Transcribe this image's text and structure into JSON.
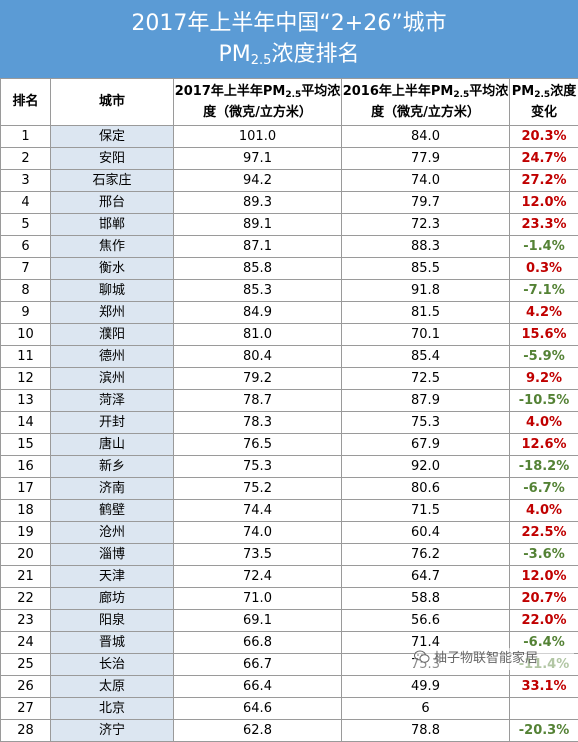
{
  "title": {
    "line1": "2017年上半年中国“2+26”城市",
    "line2_prefix": "PM",
    "line2_sub": "2.5",
    "line2_suffix": "浓度排名"
  },
  "headers": {
    "rank": "排名",
    "city": "城市",
    "y2017_prefix": "2017年上半年PM",
    "y2017_sub": "2.5",
    "y2017_suffix": "平均浓度（微克/立方米）",
    "y2016_prefix": "2016年上半年PM",
    "y2016_sub": "2.5",
    "y2016_suffix": "平均浓度（微克/立方米）",
    "change_prefix": "PM",
    "change_sub": "2.5",
    "change_suffix": "浓度变化"
  },
  "rows": [
    {
      "rank": "1",
      "city": "保定",
      "y2017": "101.0",
      "y2016": "84.0",
      "change": "20.3%",
      "trend": "up"
    },
    {
      "rank": "2",
      "city": "安阳",
      "y2017": "97.1",
      "y2016": "77.9",
      "change": "24.7%",
      "trend": "up"
    },
    {
      "rank": "3",
      "city": "石家庄",
      "y2017": "94.2",
      "y2016": "74.0",
      "change": "27.2%",
      "trend": "up"
    },
    {
      "rank": "4",
      "city": "邢台",
      "y2017": "89.3",
      "y2016": "79.7",
      "change": "12.0%",
      "trend": "up"
    },
    {
      "rank": "5",
      "city": "邯郸",
      "y2017": "89.1",
      "y2016": "72.3",
      "change": "23.3%",
      "trend": "up"
    },
    {
      "rank": "6",
      "city": "焦作",
      "y2017": "87.1",
      "y2016": "88.3",
      "change": "-1.4%",
      "trend": "down"
    },
    {
      "rank": "7",
      "city": "衡水",
      "y2017": "85.8",
      "y2016": "85.5",
      "change": "0.3%",
      "trend": "up"
    },
    {
      "rank": "8",
      "city": "聊城",
      "y2017": "85.3",
      "y2016": "91.8",
      "change": "-7.1%",
      "trend": "down"
    },
    {
      "rank": "9",
      "city": "郑州",
      "y2017": "84.9",
      "y2016": "81.5",
      "change": "4.2%",
      "trend": "up"
    },
    {
      "rank": "10",
      "city": "濮阳",
      "y2017": "81.0",
      "y2016": "70.1",
      "change": "15.6%",
      "trend": "up"
    },
    {
      "rank": "11",
      "city": "德州",
      "y2017": "80.4",
      "y2016": "85.4",
      "change": "-5.9%",
      "trend": "down"
    },
    {
      "rank": "12",
      "city": "滨州",
      "y2017": "79.2",
      "y2016": "72.5",
      "change": "9.2%",
      "trend": "up"
    },
    {
      "rank": "13",
      "city": "菏泽",
      "y2017": "78.7",
      "y2016": "87.9",
      "change": "-10.5%",
      "trend": "down"
    },
    {
      "rank": "14",
      "city": "开封",
      "y2017": "78.3",
      "y2016": "75.3",
      "change": "4.0%",
      "trend": "up"
    },
    {
      "rank": "15",
      "city": "唐山",
      "y2017": "76.5",
      "y2016": "67.9",
      "change": "12.6%",
      "trend": "up"
    },
    {
      "rank": "16",
      "city": "新乡",
      "y2017": "75.3",
      "y2016": "92.0",
      "change": "-18.2%",
      "trend": "down"
    },
    {
      "rank": "17",
      "city": "济南",
      "y2017": "75.2",
      "y2016": "80.6",
      "change": "-6.7%",
      "trend": "down"
    },
    {
      "rank": "18",
      "city": "鹤壁",
      "y2017": "74.4",
      "y2016": "71.5",
      "change": "4.0%",
      "trend": "up"
    },
    {
      "rank": "19",
      "city": "沧州",
      "y2017": "74.0",
      "y2016": "60.4",
      "change": "22.5%",
      "trend": "up"
    },
    {
      "rank": "20",
      "city": "淄博",
      "y2017": "73.5",
      "y2016": "76.2",
      "change": "-3.6%",
      "trend": "down"
    },
    {
      "rank": "21",
      "city": "天津",
      "y2017": "72.4",
      "y2016": "64.7",
      "change": "12.0%",
      "trend": "up"
    },
    {
      "rank": "22",
      "city": "廊坊",
      "y2017": "71.0",
      "y2016": "58.8",
      "change": "20.7%",
      "trend": "up"
    },
    {
      "rank": "23",
      "city": "阳泉",
      "y2017": "69.1",
      "y2016": "56.6",
      "change": "22.0%",
      "trend": "up"
    },
    {
      "rank": "24",
      "city": "晋城",
      "y2017": "66.8",
      "y2016": "71.4",
      "change": "-6.4%",
      "trend": "down"
    },
    {
      "rank": "25",
      "city": "长治",
      "y2017": "66.7",
      "y2016": "75.3",
      "change": "-11.4%",
      "trend": "down"
    },
    {
      "rank": "26",
      "city": "太原",
      "y2017": "66.4",
      "y2016": "49.9",
      "change": "33.1%",
      "trend": "up"
    },
    {
      "rank": "27",
      "city": "北京",
      "y2017": "64.6",
      "y2016": "6",
      "change": "",
      "trend": "up"
    },
    {
      "rank": "28",
      "city": "济宁",
      "y2017": "62.8",
      "y2016": "78.8",
      "change": "-20.3%",
      "trend": "down"
    }
  ],
  "watermark": {
    "text": "柚子物联智能家居",
    "icon": "wechat-icon"
  },
  "colors": {
    "header_bg": "#5b9bd5",
    "city_col_bg": "#dce6f1",
    "increase": "#c00000",
    "decrease": "#548235"
  }
}
